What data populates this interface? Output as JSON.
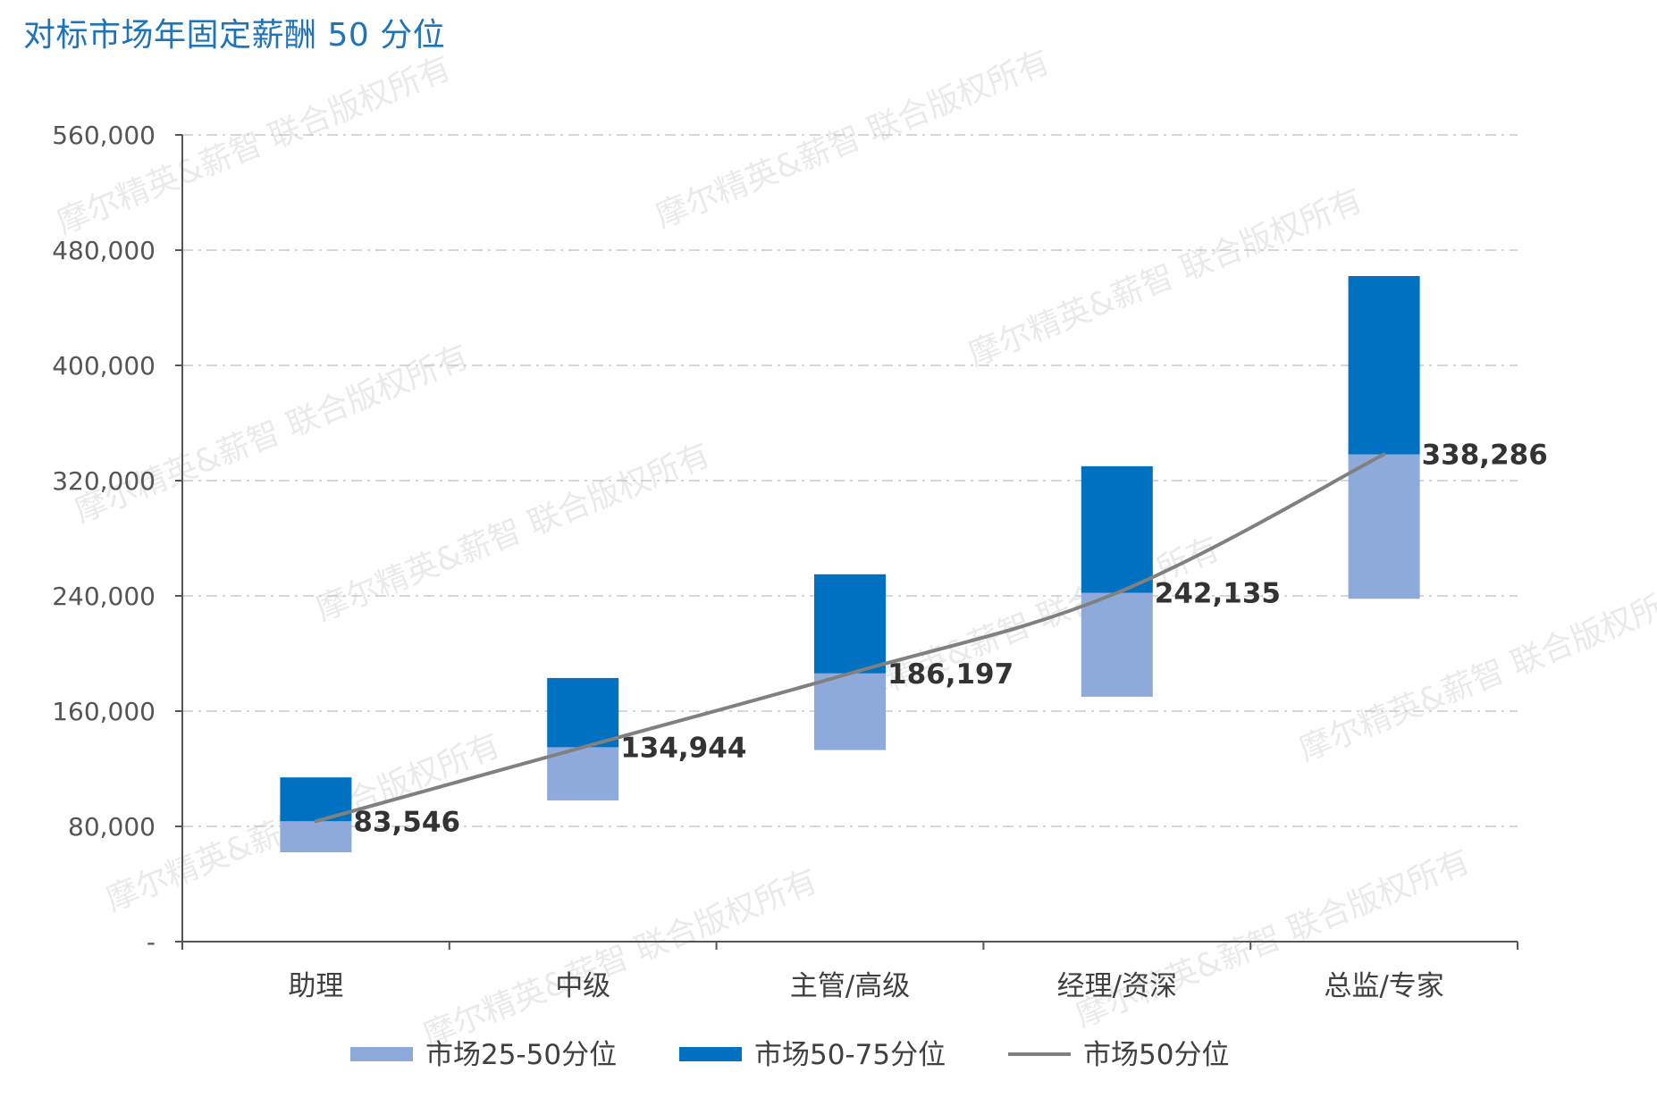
{
  "chart_data": {
    "type": "bar",
    "title": "对标市场年固定薪酬 50 分位",
    "categories": [
      "助理",
      "中级",
      "主管/高级",
      "经理/资深",
      "总监/专家"
    ],
    "ylim": [
      0,
      560000
    ],
    "y_ticks": [
      0,
      80000,
      160000,
      240000,
      320000,
      400000,
      480000,
      560000
    ],
    "y_tick_labels": [
      "-",
      "80,000",
      "160,000",
      "240,000",
      "320,000",
      "400,000",
      "480,000",
      "560,000"
    ],
    "grid": true,
    "legend_position": "bottom",
    "series": [
      {
        "name": "市场25-50分位",
        "kind": "range-bar",
        "color": "#8eaadb",
        "low": [
          62000,
          98000,
          133000,
          170000,
          238000
        ],
        "high": [
          83546,
          134944,
          186197,
          242135,
          338286
        ]
      },
      {
        "name": "市场50-75分位",
        "kind": "range-bar",
        "color": "#0070c0",
        "low": [
          83546,
          134944,
          186197,
          242135,
          338286
        ],
        "high": [
          114000,
          183000,
          255000,
          330000,
          462000
        ]
      },
      {
        "name": "市场50分位",
        "kind": "line",
        "color": "#808080",
        "values": [
          83546,
          134944,
          186197,
          242135,
          338286
        ],
        "labels": [
          "83,546",
          "134,944",
          "186,197",
          "242,135",
          "338,286"
        ]
      }
    ]
  },
  "watermark": {
    "text": "摩尔精英&薪智 联合版权所有"
  }
}
